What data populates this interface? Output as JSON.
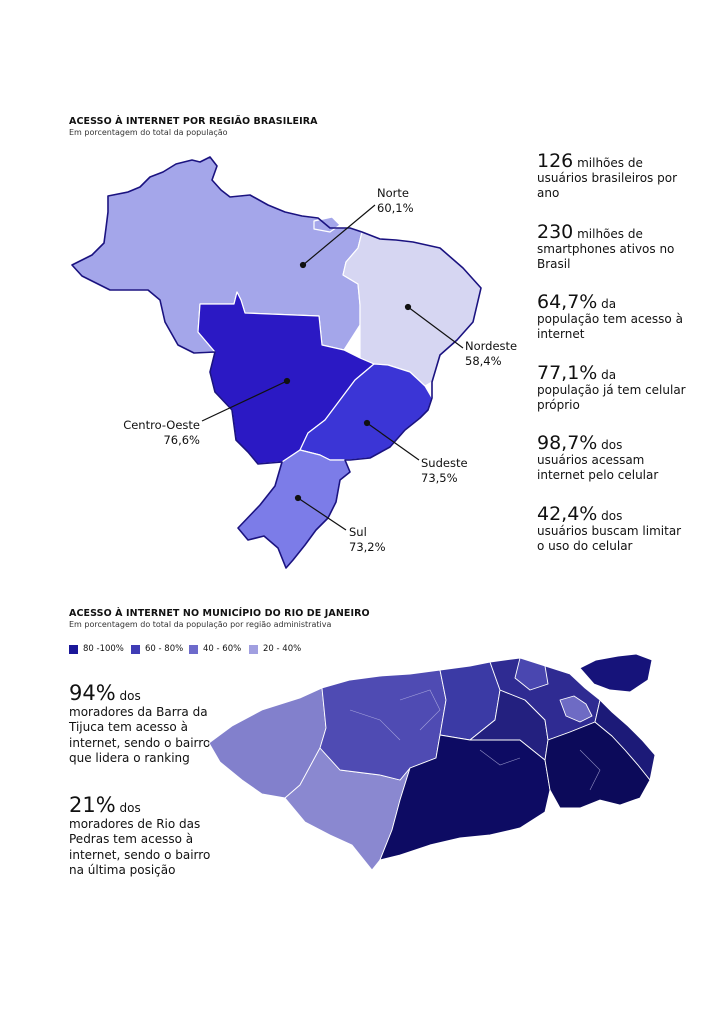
{
  "brazil": {
    "title": "ACESSO À INTERNET POR REGIÃO BRASILEIRA",
    "subtitle": "Em porcentagem do total da população",
    "regions": [
      {
        "name": "Norte",
        "value": "60,1%",
        "color": "#a4a6ea"
      },
      {
        "name": "Nordeste",
        "value": "58,4%",
        "color": "#d6d6f2"
      },
      {
        "name": "Centro-Oeste",
        "value": "76,6%",
        "color": "#2b19c4"
      },
      {
        "name": "Sudeste",
        "value": "73,5%",
        "color": "#3b35d6"
      },
      {
        "name": "Sul",
        "value": "73,2%",
        "color": "#7c7ce8"
      }
    ]
  },
  "stats": [
    {
      "big": "126",
      "rest": " milhões de",
      "more": "usuários brasileiros por ano"
    },
    {
      "big": "230",
      "rest": " milhões de",
      "more": "smartphones ativos no Brasil"
    },
    {
      "big": "64,7%",
      "rest": " da",
      "more": "população tem acesso à internet"
    },
    {
      "big": "77,1%",
      "rest": " da",
      "more": "população já tem celular próprio"
    },
    {
      "big": "98,7%",
      "rest": " dos",
      "more": "usuários acessam internet pelo celular"
    },
    {
      "big": "42,4%",
      "rest": " dos",
      "more": "usuários buscam limitar o uso do celular"
    }
  ],
  "rio": {
    "title": "ACESSO À INTERNET NO MUNICÍPIO DO RIO DE JANEIRO",
    "subtitle": "Em porcentagem do total da população por região administrativa",
    "legend": [
      {
        "label": "80 -100%",
        "color": "#1a1799"
      },
      {
        "label": "60 - 80%",
        "color": "#3f3cb5"
      },
      {
        "label": "40 - 60%",
        "color": "#6d6acb"
      },
      {
        "label": "20 - 40%",
        "color": "#a19fe0"
      }
    ],
    "stats": [
      {
        "big": "94%",
        "rest": " dos",
        "more": "moradores da Barra da Tijuca tem acesso à internet, sendo o bairro que lidera o ranking"
      },
      {
        "big": "21%",
        "rest": " dos",
        "more": "moradores de Rio das Pedras tem acesso à internet, sendo o bairro na última posição"
      }
    ]
  }
}
